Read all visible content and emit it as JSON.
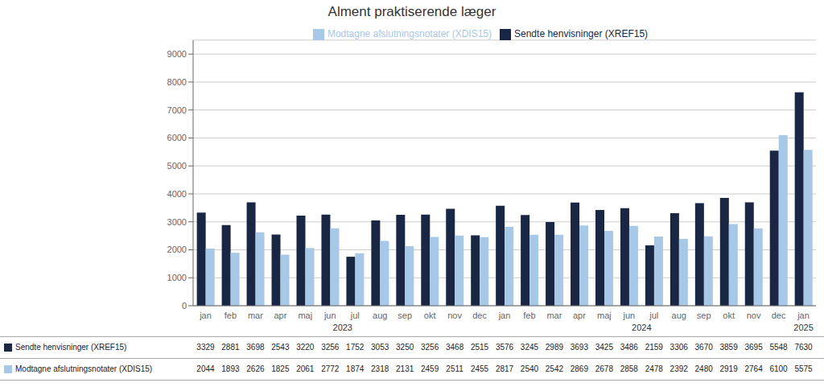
{
  "chart_data": {
    "type": "bar",
    "title": "Alment praktiserende læger",
    "categories": [
      "jan",
      "feb",
      "mar",
      "apr",
      "maj",
      "jun",
      "jul",
      "aug",
      "sep",
      "okt",
      "nov",
      "dec",
      "jan",
      "feb",
      "mar",
      "apr",
      "maj",
      "jun",
      "jul",
      "aug",
      "sep",
      "okt",
      "nov",
      "dec",
      "jan"
    ],
    "series": [
      {
        "name": "Sendte henvisninger (XREF15)",
        "color": "#1a2744",
        "values": [
          3329,
          2881,
          3698,
          2543,
          3220,
          3256,
          1752,
          3053,
          3250,
          3256,
          3468,
          2515,
          3576,
          3245,
          2989,
          3693,
          3425,
          3486,
          2159,
          3306,
          3670,
          3859,
          3695,
          5548,
          7630
        ]
      },
      {
        "name": "Modtagne afslutningsnotater (XDIS15)",
        "color": "#a8c8e8",
        "values": [
          2044,
          1893,
          2626,
          1825,
          2061,
          2772,
          1874,
          2318,
          2131,
          2459,
          2511,
          2455,
          2817,
          2540,
          2542,
          2869,
          2678,
          2858,
          2478,
          2392,
          2480,
          2919,
          2764,
          6100,
          5575
        ]
      }
    ],
    "ylim": [
      0,
      9500
    ],
    "yticks": [
      0,
      1000,
      2000,
      3000,
      4000,
      5000,
      6000,
      7000,
      8000,
      9000
    ],
    "grid": true,
    "legend": "top",
    "annotations": [
      {
        "text": "2023",
        "x": 5.5
      },
      {
        "text": "2024",
        "x": 17.5
      },
      {
        "text": "2025",
        "x": 24
      }
    ]
  }
}
